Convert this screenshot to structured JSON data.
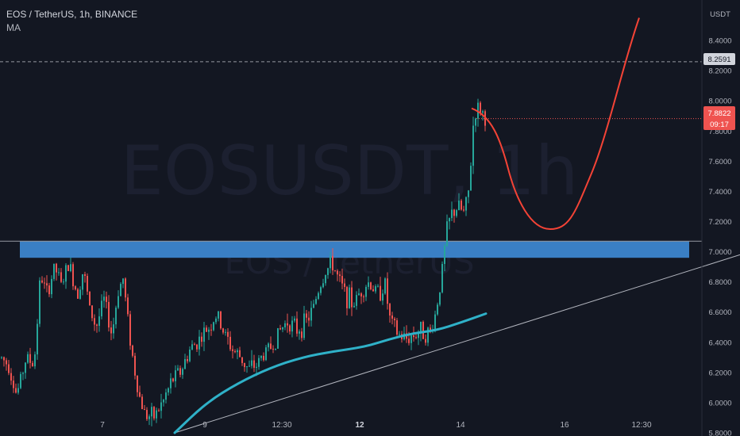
{
  "legend": {
    "symbol_line": "EOS / TetherUS, 1h, BINANCE",
    "indicator": "MA"
  },
  "watermark": {
    "ticker": "EOSUSDT, 1h",
    "name": "EOS / TetherUS"
  },
  "colors": {
    "background": "#131722",
    "candle_up": "#26a69a",
    "candle_down": "#ef5350",
    "ma_line": "#2fb1c8",
    "zone_fill": "#3a7fc4",
    "projection": "#f44336",
    "trendline": "#b2b5be",
    "price_label_bg": "#ef5350",
    "axis_text": "#b2b5be"
  },
  "chart_data": {
    "type": "candlestick",
    "symbol": "EOS / TetherUS",
    "timeframe": "1h",
    "exchange": "BINANCE",
    "y_axis": {
      "currency": "USDT",
      "ticks": [
        "8.4000",
        "8.2000",
        "8.0000",
        "7.8000",
        "7.6000",
        "7.4000",
        "7.2000",
        "7.0000",
        "6.8000",
        "6.6000",
        "6.4000",
        "6.2000",
        "6.0000",
        "5.8000"
      ],
      "range": [
        5.8,
        8.6
      ]
    },
    "x_axis": {
      "ticks": [
        "7",
        "9",
        "12:30",
        "12",
        "14",
        "16",
        "12:30"
      ],
      "bold_ticks": [
        "12"
      ]
    },
    "last_price": "7.8822",
    "countdown": "09:17",
    "dashed_level": "8.2591",
    "resistance_zone": [
      6.96,
      7.07
    ],
    "horizontal_line": 7.07,
    "trendline": [
      [
        220,
        5.8
      ],
      [
        932,
        6.98
      ]
    ],
    "projection_path": [
      [
        594,
        7.95
      ],
      [
        640,
        7.55
      ],
      [
        693,
        7.15
      ],
      [
        745,
        7.52
      ],
      [
        805,
        8.55
      ]
    ],
    "moving_average": [
      [
        220,
        5.8
      ],
      [
        260,
        6.0
      ],
      [
        300,
        6.13
      ],
      [
        340,
        6.23
      ],
      [
        380,
        6.3
      ],
      [
        420,
        6.34
      ],
      [
        460,
        6.37
      ],
      [
        490,
        6.42
      ],
      [
        520,
        6.46
      ],
      [
        550,
        6.48
      ],
      [
        580,
        6.53
      ],
      [
        612,
        6.59
      ]
    ],
    "candle_path": [
      [
        0,
        6.3
      ],
      [
        10,
        6.25
      ],
      [
        20,
        6.05
      ],
      [
        32,
        6.3
      ],
      [
        42,
        6.25
      ],
      [
        50,
        6.85
      ],
      [
        58,
        6.72
      ],
      [
        68,
        6.9
      ],
      [
        76,
        6.78
      ],
      [
        86,
        6.92
      ],
      [
        96,
        6.72
      ],
      [
        104,
        6.88
      ],
      [
        112,
        6.62
      ],
      [
        120,
        6.5
      ],
      [
        130,
        6.68
      ],
      [
        140,
        6.45
      ],
      [
        148,
        6.75
      ],
      [
        154,
        6.82
      ],
      [
        160,
        6.55
      ],
      [
        166,
        6.3
      ],
      [
        174,
        6.05
      ],
      [
        182,
        5.92
      ],
      [
        192,
        5.9
      ],
      [
        204,
        6.0
      ],
      [
        216,
        6.15
      ],
      [
        228,
        6.22
      ],
      [
        238,
        6.35
      ],
      [
        250,
        6.42
      ],
      [
        262,
        6.5
      ],
      [
        272,
        6.58
      ],
      [
        282,
        6.45
      ],
      [
        292,
        6.35
      ],
      [
        302,
        6.3
      ],
      [
        312,
        6.22
      ],
      [
        322,
        6.25
      ],
      [
        332,
        6.33
      ],
      [
        342,
        6.38
      ],
      [
        352,
        6.48
      ],
      [
        362,
        6.55
      ],
      [
        372,
        6.48
      ],
      [
        382,
        6.52
      ],
      [
        392,
        6.6
      ],
      [
        400,
        6.75
      ],
      [
        410,
        6.88
      ],
      [
        418,
        6.92
      ],
      [
        426,
        6.8
      ],
      [
        434,
        6.72
      ],
      [
        444,
        6.65
      ],
      [
        454,
        6.75
      ],
      [
        464,
        6.8
      ],
      [
        474,
        6.72
      ],
      [
        484,
        6.78
      ],
      [
        490,
        6.55
      ],
      [
        500,
        6.45
      ],
      [
        510,
        6.42
      ],
      [
        520,
        6.45
      ],
      [
        530,
        6.48
      ],
      [
        540,
        6.45
      ],
      [
        548,
        6.6
      ],
      [
        556,
        6.88
      ],
      [
        562,
        7.15
      ],
      [
        568,
        7.25
      ],
      [
        576,
        7.3
      ],
      [
        584,
        7.25
      ],
      [
        590,
        7.42
      ],
      [
        596,
        7.92
      ],
      [
        604,
        7.95
      ],
      [
        610,
        7.88
      ]
    ]
  }
}
